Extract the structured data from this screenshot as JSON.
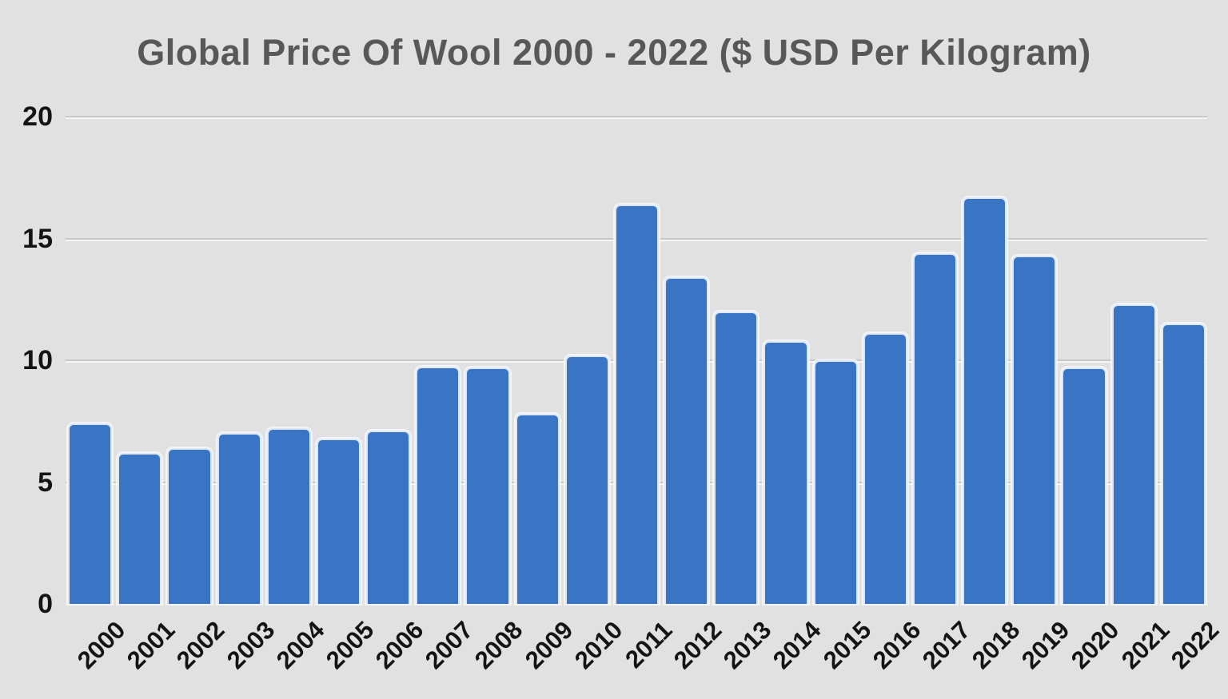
{
  "chart_data": {
    "type": "bar",
    "title": "Global Price Of Wool 2000 - 2022 ($ USD Per Kilogram)",
    "categories": [
      "2000",
      "2001",
      "2002",
      "2003",
      "2004",
      "2005",
      "2006",
      "2007",
      "2008",
      "2009",
      "2010",
      "2011",
      "2012",
      "2013",
      "2014",
      "2015",
      "2016",
      "2017",
      "2018",
      "2019",
      "2020",
      "2021",
      "2022"
    ],
    "values": [
      7.4,
      6.2,
      6.4,
      7.0,
      7.2,
      6.8,
      7.1,
      9.75,
      9.7,
      7.8,
      10.2,
      16.4,
      13.4,
      12.0,
      10.8,
      10.0,
      11.1,
      14.4,
      16.7,
      14.3,
      9.7,
      12.3,
      11.5
    ],
    "xlabel": "",
    "ylabel": "",
    "ylim": [
      0,
      20
    ],
    "yticks": [
      0,
      5,
      10,
      15,
      20
    ],
    "grid": true,
    "legend": false,
    "colors": {
      "bar": "#3a74c5",
      "bar_border": "#dce8f8",
      "background": "#e1e1e1",
      "gridline": "#c7c7c7",
      "title": "#57585a",
      "tick_label": "#141414"
    }
  }
}
